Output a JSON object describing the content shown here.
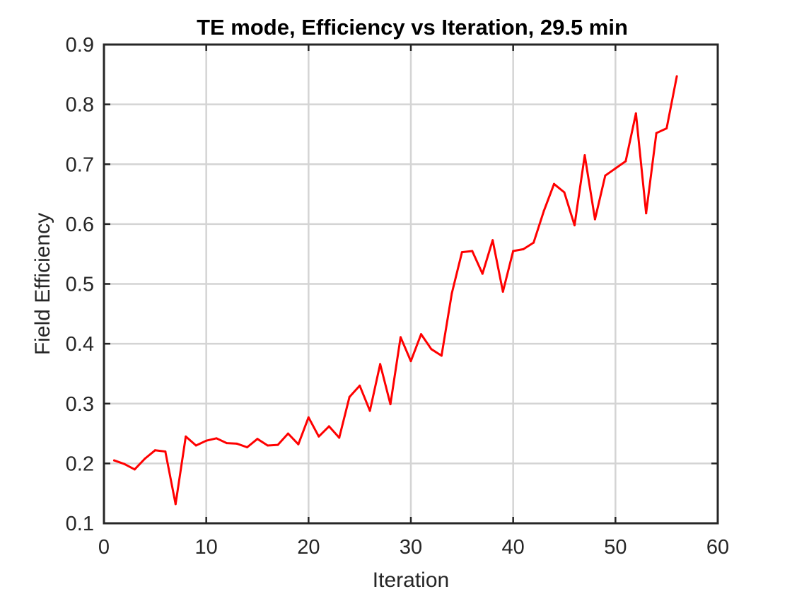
{
  "chart_data": {
    "type": "line",
    "title": "TE mode, Efficiency vs Iteration, 29.5 min",
    "xlabel": "Iteration",
    "ylabel": "Field Efficiency",
    "xlim": [
      0,
      60
    ],
    "ylim": [
      0.1,
      0.9
    ],
    "xticks": [
      0,
      10,
      20,
      30,
      40,
      50,
      60
    ],
    "yticks": [
      0.1,
      0.2,
      0.3,
      0.4,
      0.5,
      0.6,
      0.7,
      0.8,
      0.9
    ],
    "xtick_labels": [
      "0",
      "10",
      "20",
      "30",
      "40",
      "50",
      "60"
    ],
    "ytick_labels": [
      "0.1",
      "0.2",
      "0.3",
      "0.4",
      "0.5",
      "0.6",
      "0.7",
      "0.8",
      "0.9"
    ],
    "grid": true,
    "series": [
      {
        "color": "#ff0000",
        "x": [
          1,
          2,
          3,
          4,
          5,
          6,
          7,
          8,
          9,
          10,
          11,
          12,
          13,
          14,
          15,
          16,
          17,
          18,
          19,
          20,
          21,
          22,
          23,
          24,
          25,
          26,
          27,
          28,
          29,
          30,
          31,
          32,
          33,
          34,
          35,
          36,
          37,
          38,
          39,
          40,
          41,
          42,
          43,
          44,
          45,
          46,
          47,
          48,
          49,
          50,
          51,
          52,
          53,
          54,
          55,
          56
        ],
        "values": [
          0.205,
          0.199,
          0.19,
          0.208,
          0.222,
          0.22,
          0.132,
          0.245,
          0.23,
          0.238,
          0.242,
          0.234,
          0.233,
          0.227,
          0.241,
          0.23,
          0.231,
          0.25,
          0.232,
          0.277,
          0.245,
          0.262,
          0.243,
          0.311,
          0.33,
          0.288,
          0.366,
          0.299,
          0.411,
          0.371,
          0.416,
          0.391,
          0.38,
          0.484,
          0.553,
          0.555,
          0.517,
          0.573,
          0.487,
          0.555,
          0.558,
          0.569,
          0.622,
          0.667,
          0.653,
          0.598,
          0.715,
          0.608,
          0.681,
          0.693,
          0.705,
          0.785,
          0.618,
          0.752,
          0.76,
          0.847
        ]
      }
    ]
  }
}
